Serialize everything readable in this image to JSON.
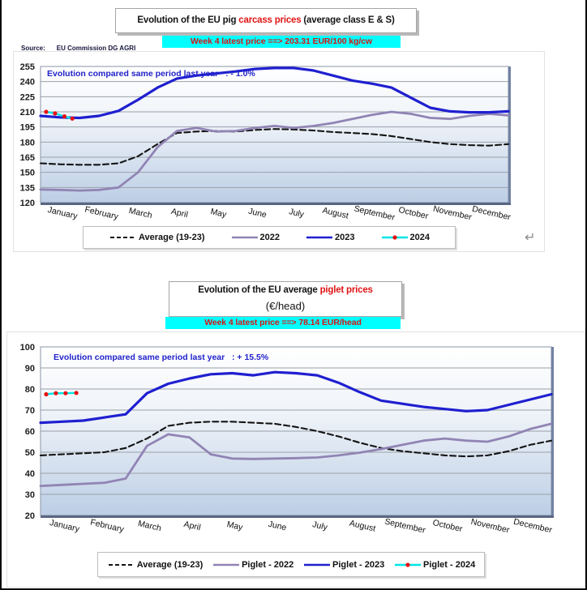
{
  "source": {
    "label": "Source:",
    "value": "EU Commission DG AGRI"
  },
  "return_symbol": "↵",
  "headers": [
    {
      "title_prefix": "Evolution of the EU pig ",
      "title_highlight": "carcass prices",
      "title_suffix": " (average class E & S)"
    },
    {
      "title_prefix": "Evolution of the EU average ",
      "title_highlight": "piglet prices",
      "title_suffix": "",
      "title_line2": "(€/head)"
    }
  ],
  "chart_data": [
    {
      "type": "line",
      "title": "Evolution of the EU pig carcass prices (average class E & S)",
      "subtitle": "Week 4 latest price ==>  203.31 EUR/100 kg/cw",
      "annotation": "Evolution compared same period last year   : - 1.0%",
      "xlabel": "",
      "ylabel": "EUR/100 kg/cw",
      "ylim": [
        120,
        255
      ],
      "yticks": [
        120,
        135,
        150,
        165,
        180,
        195,
        210,
        225,
        240,
        255
      ],
      "grid": true,
      "legend_position": "bottom",
      "categories": [
        "January",
        "February",
        "March",
        "April",
        "May",
        "June",
        "July",
        "August",
        "September",
        "October",
        "November",
        "December"
      ],
      "points_per_month": 2,
      "series": [
        {
          "name": "Average (19-23)",
          "color": "#141414",
          "style": "dashed",
          "width": 2.1,
          "values": [
            159,
            158,
            157.5,
            157.5,
            159,
            166,
            178,
            189,
            190.5,
            191,
            190.5,
            192,
            193,
            192.5,
            191.5,
            190,
            189,
            188,
            186,
            183,
            180,
            178,
            177,
            176.5,
            178
          ]
        },
        {
          "name": "2022",
          "color": "#9184b4",
          "style": "solid",
          "width": 2.8,
          "values": [
            133,
            132.5,
            132,
            132.5,
            135,
            150,
            175,
            191,
            194,
            190.5,
            191,
            194,
            196,
            194,
            196,
            199,
            203,
            207,
            210,
            208,
            204,
            203,
            206,
            208,
            206.5
          ]
        },
        {
          "name": "2023",
          "color": "#1f1fd0",
          "style": "solid",
          "width": 3.2,
          "values": [
            206,
            204.5,
            204,
            206,
            211,
            222,
            234,
            243,
            246,
            248,
            250,
            252.5,
            253.5,
            253.5,
            251,
            246,
            241,
            238,
            234,
            224,
            214,
            210.5,
            209.5,
            209.5,
            210.5
          ]
        },
        {
          "name": "2024",
          "color": "#00e6e6",
          "style": "solid",
          "width": 2.4,
          "marker": "#e81010",
          "x": [
            0.012,
            0.031,
            0.051,
            0.068
          ],
          "values": [
            210,
            208.5,
            205.5,
            203.31
          ]
        }
      ]
    },
    {
      "type": "line",
      "title": "Evolution of the EU average piglet prices (€/head)",
      "subtitle": "Week 4 latest price ==>  78.14 EUR/head",
      "annotation": "Evolution compared same period last year   : + 15.5%",
      "xlabel": "",
      "ylabel": "EUR/head",
      "ylim": [
        20,
        100
      ],
      "yticks": [
        20,
        30,
        40,
        50,
        60,
        70,
        80,
        90,
        100
      ],
      "grid": true,
      "legend_position": "bottom",
      "categories": [
        "January",
        "February",
        "March",
        "April",
        "May",
        "June",
        "July",
        "August",
        "September",
        "October",
        "November",
        "December"
      ],
      "points_per_month": 2,
      "series": [
        {
          "name": "Average (19-23)",
          "color": "#141414",
          "style": "dashed",
          "width": 2.1,
          "values": [
            48.5,
            49,
            49.5,
            50,
            52,
            56.5,
            62.5,
            64,
            64.5,
            64.5,
            64,
            63.5,
            62,
            60,
            57.5,
            54.5,
            52,
            50.5,
            49.5,
            48.5,
            48,
            48.5,
            50.5,
            53.5,
            55.5
          ]
        },
        {
          "name": "Piglet - 2022",
          "color": "#9184b4",
          "style": "solid",
          "width": 2.8,
          "values": [
            34,
            34.5,
            35,
            35.5,
            37.5,
            53,
            58.5,
            57,
            49,
            47,
            46.8,
            47,
            47.2,
            47.5,
            48.5,
            49.8,
            51.5,
            53.5,
            55.5,
            56.5,
            55.5,
            55,
            57.5,
            61,
            63.5
          ]
        },
        {
          "name": "Piglet - 2023",
          "color": "#1f1fd0",
          "style": "solid",
          "width": 3.2,
          "values": [
            64,
            64.5,
            65,
            66.5,
            68,
            78,
            82.5,
            85,
            87,
            87.5,
            86.5,
            88,
            87.5,
            86.5,
            83,
            78.5,
            74.5,
            73,
            71.5,
            70.5,
            69.5,
            70,
            72.5,
            75,
            77.5
          ]
        },
        {
          "name": "Piglet - 2024",
          "color": "#00e6e6",
          "style": "solid",
          "width": 2.4,
          "marker": "#e81010",
          "x": [
            0.011,
            0.03,
            0.049,
            0.07
          ],
          "values": [
            77.5,
            78,
            78,
            78.14
          ]
        }
      ]
    }
  ]
}
